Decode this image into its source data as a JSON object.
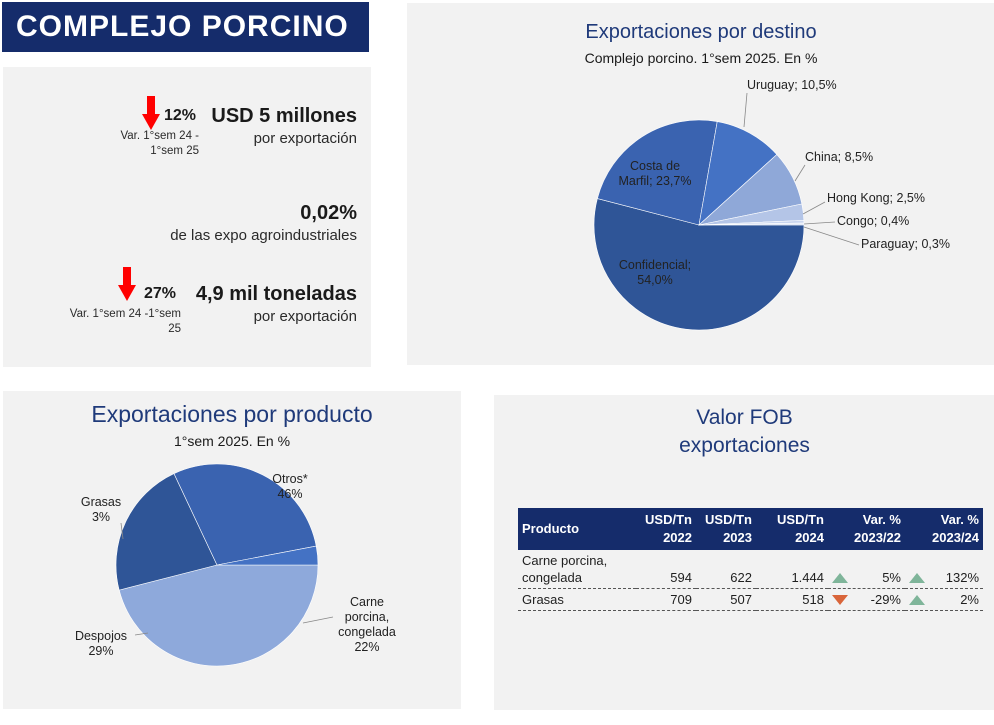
{
  "banner": {
    "title": "COMPLEJO PORCINO"
  },
  "kpis": {
    "export_value": {
      "var_pct": "12%",
      "var_label_1": "Var.  1°sem 24 -",
      "var_label_2": "1°sem 25",
      "main": "USD 5 millones",
      "sub": "por exportación",
      "arrow": "arrow-down-icon"
    },
    "share": {
      "main": "0,02%",
      "sub": "de las expo agroindustriales"
    },
    "volume": {
      "var_pct": "27%",
      "var_label_1": "Var.  1°sem 24 -1°sem",
      "var_label_2": "25",
      "main": "4,9 mil toneladas",
      "sub": "por exportación",
      "arrow": "arrow-down-icon"
    }
  },
  "colors": {
    "navy": "#152c6b",
    "title_blue": "#1f3a7a",
    "arrow_red": "#ff0000",
    "up": "#7fb59a",
    "down": "#d9653a"
  },
  "chart_data": [
    {
      "type": "pie",
      "title": "Exportaciones por destino",
      "subtitle": "Complejo porcino. 1°sem 2025. En %",
      "slices": [
        {
          "label": "Confidencial; 54,0%",
          "name": "Confidencial",
          "value": 54.0,
          "color": "#2f5597"
        },
        {
          "label": "Costa de Marfil; 23,7%",
          "name": "Costa de Marfil",
          "value": 23.7,
          "color": "#3a63b0"
        },
        {
          "label": "Uruguay; 10,5%",
          "name": "Uruguay",
          "value": 10.5,
          "color": "#4472c4"
        },
        {
          "label": "China; 8,5%",
          "name": "China",
          "value": 8.5,
          "color": "#8fa8d8"
        },
        {
          "label": "Hong Kong; 2,5%",
          "name": "Hong Kong",
          "value": 2.5,
          "color": "#b4c5e7"
        },
        {
          "label": "Congo; 0,4%",
          "name": "Congo",
          "value": 0.4,
          "color": "#c9d5ee"
        },
        {
          "label": "Paraguay; 0,3%",
          "name": "Paraguay",
          "value": 0.3,
          "color": "#dbe3f4"
        }
      ]
    },
    {
      "type": "pie",
      "title": "Exportaciones por producto",
      "subtitle": "1°sem 2025. En %",
      "slices": [
        {
          "label": "Otros* 46%",
          "name": "Otros*",
          "value": 46,
          "color": "#8ea9db"
        },
        {
          "label": "Carne porcina, congelada 22%",
          "name": "Carne porcina, congelada",
          "value": 22,
          "color": "#2f5597"
        },
        {
          "label": "Despojos 29%",
          "name": "Despojos",
          "value": 29,
          "color": "#3a63b0"
        },
        {
          "label": "Grasas 3%",
          "name": "Grasas",
          "value": 3,
          "color": "#4472c4"
        }
      ]
    },
    {
      "type": "table",
      "title_1": "Valor FOB",
      "title_2": "exportaciones",
      "headers": [
        [
          "Producto",
          ""
        ],
        [
          "USD/Tn",
          "2022"
        ],
        [
          "USD/Tn",
          "2023"
        ],
        [
          "USD/Tn",
          "2024"
        ],
        [
          "Var. %",
          "2023/22"
        ],
        [
          "Var. %",
          "2023/24"
        ]
      ],
      "rows": [
        {
          "product": "Carne porcina, congelada",
          "v2022": "594",
          "v2023": "622",
          "v2024": "1.444",
          "var1": "5%",
          "var1_dir": "up",
          "var2": "132%",
          "var2_dir": "up"
        },
        {
          "product": "Grasas",
          "v2022": "709",
          "v2023": "507",
          "v2024": "518",
          "var1": "-29%",
          "var1_dir": "down",
          "var2": "2%",
          "var2_dir": "up"
        }
      ]
    }
  ]
}
